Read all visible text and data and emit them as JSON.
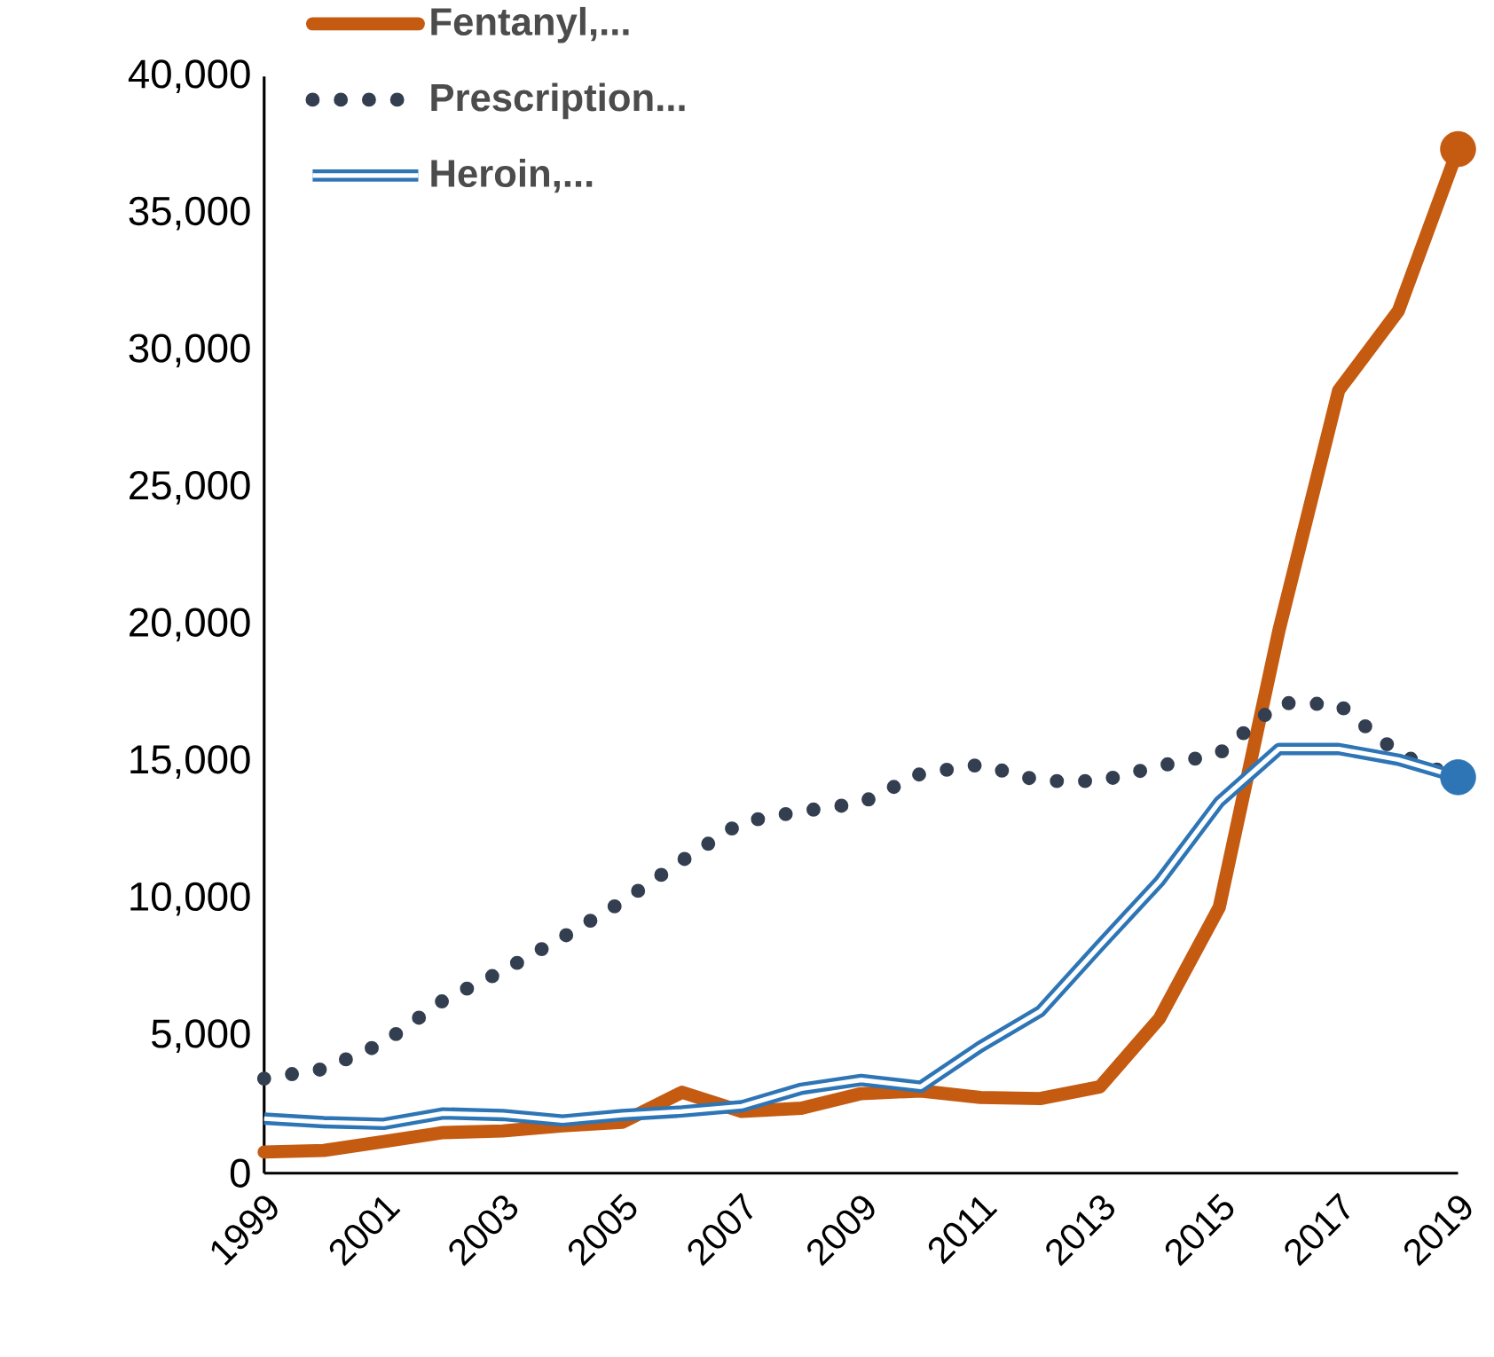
{
  "chart_data": {
    "type": "line",
    "x": [
      1999,
      2000,
      2001,
      2002,
      2003,
      2004,
      2005,
      2006,
      2007,
      2008,
      2009,
      2010,
      2011,
      2012,
      2013,
      2014,
      2015,
      2016,
      2017,
      2018,
      2019
    ],
    "series": [
      {
        "name": "Fentanyl,...",
        "color": "#c55a11",
        "line_style": "solid",
        "values": [
          770,
          830,
          1150,
          1480,
          1540,
          1730,
          1860,
          2950,
          2250,
          2370,
          2900,
          3000,
          2760,
          2720,
          3150,
          5650,
          9700,
          19800,
          28550,
          31450,
          37350
        ]
      },
      {
        "name": "Prescription...",
        "color": "#333f50",
        "line_style": "dotted",
        "values": [
          3450,
          3800,
          4750,
          6300,
          7380,
          8600,
          9900,
          11400,
          12800,
          13200,
          13500,
          14570,
          14900,
          14300,
          14300,
          14850,
          15300,
          17150,
          17100,
          15300,
          14400
        ]
      },
      {
        "name": "Heroin,...",
        "color": "#2e75b6",
        "values": [
          1990,
          1860,
          1800,
          2180,
          2120,
          1920,
          2120,
          2250,
          2440,
          3080,
          3400,
          3150,
          4620,
          5900,
          8300,
          10650,
          13540,
          15470,
          15470,
          15080,
          14440
        ]
      },
      {
        "type": "scatter",
        "color": "#c55a11",
        "x": [
          2019
        ],
        "values": [
          37350
        ]
      },
      {
        "type": "scatter",
        "color": "#2e75b6",
        "x": [
          2019
        ],
        "values": [
          14440
        ]
      }
    ],
    "xlim": [
      1999,
      2019
    ],
    "xticks": [
      1999,
      2001,
      2003,
      2005,
      2007,
      2009,
      2011,
      2013,
      2015,
      2017,
      2019
    ],
    "ylim": [
      0,
      40000
    ],
    "yticks": [
      0,
      {
        "value": 5000,
        "label": "5,000"
      },
      {
        "value": 10000,
        "label": "10,000"
      },
      {
        "value": 15000,
        "label": "15,000"
      },
      {
        "value": 20000,
        "label": "20,000"
      },
      {
        "value": 25000,
        "label": "25,000"
      },
      {
        "value": 30000,
        "label": "30,000"
      },
      {
        "value": 35000,
        "label": "35,000"
      },
      {
        "value": 40000,
        "label": "40,000"
      }
    ],
    "grid": false,
    "legend": "top left"
  }
}
